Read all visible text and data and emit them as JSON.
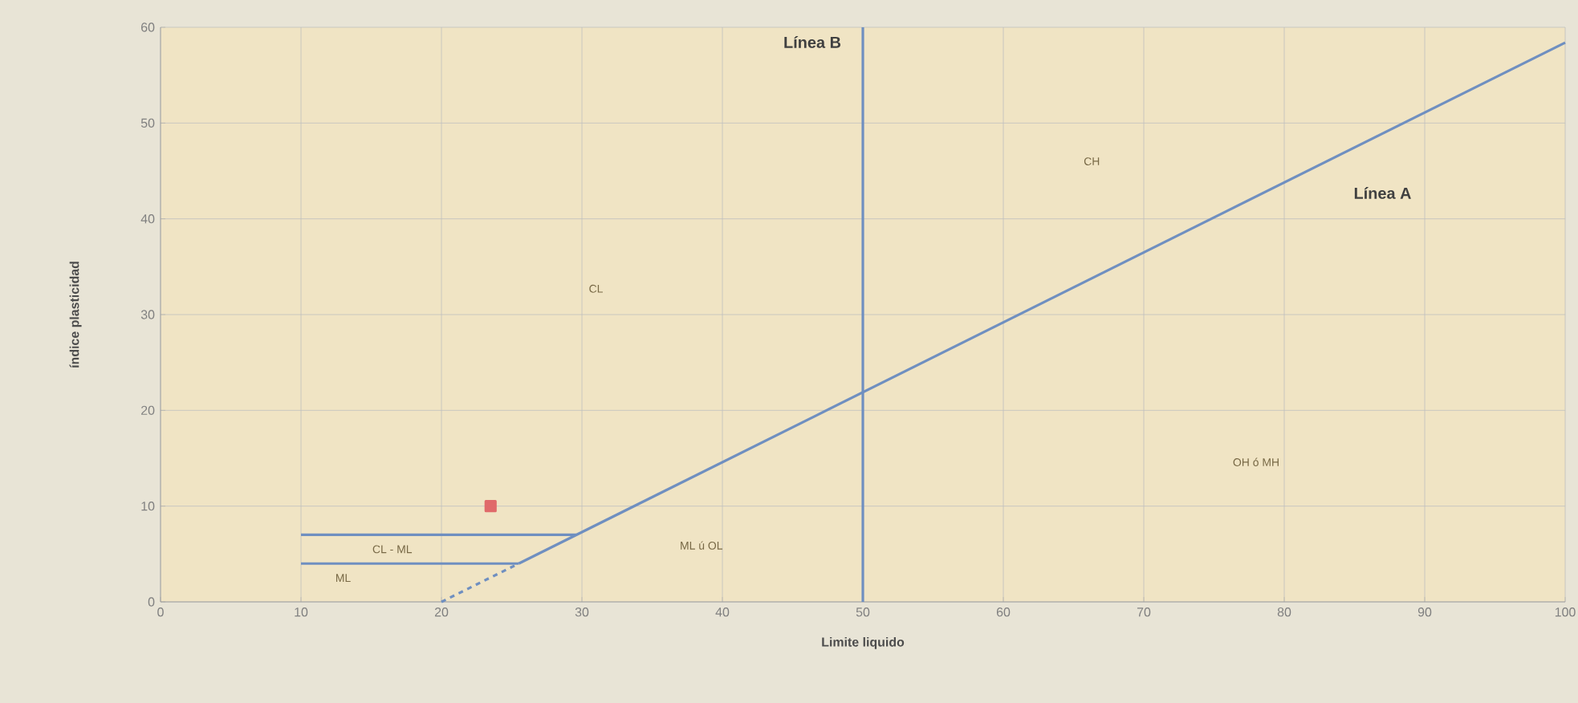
{
  "chart_data": {
    "type": "line",
    "xlabel": "Limite liquido",
    "ylabel": "índice plasticidad",
    "xlim": [
      0,
      100
    ],
    "ylim": [
      0,
      60
    ],
    "xticks": [
      0,
      10,
      20,
      30,
      40,
      50,
      60,
      70,
      80,
      90,
      100
    ],
    "yticks": [
      0,
      10,
      20,
      30,
      40,
      50,
      60
    ],
    "grid": true,
    "series": [
      {
        "x": [
          25.5,
          100
        ],
        "values": [
          4,
          58.4
        ],
        "color": "#6f8fc0",
        "line_style": "solid",
        "marker": "none"
      },
      {
        "x": [
          20,
          25.5
        ],
        "values": [
          0,
          4
        ],
        "color": "#6f8fc0",
        "line_style": "dashed",
        "marker": "none"
      },
      {
        "x": [
          10,
          29.6
        ],
        "values": [
          7,
          7
        ],
        "color": "#6f8fc0",
        "line_style": "solid",
        "marker": "none"
      },
      {
        "x": [
          10,
          25.5
        ],
        "values": [
          4,
          4
        ],
        "color": "#6f8fc0",
        "line_style": "solid",
        "marker": "none"
      },
      {
        "type": "scatter",
        "x": [
          23.5
        ],
        "values": [
          10
        ],
        "color": "#e06a6a",
        "marker": "square"
      }
    ],
    "ref_lines": [
      {
        "axis": "x",
        "value": 50,
        "label": "Línea B",
        "color": "#6f8fc0"
      }
    ],
    "annotations": [
      "Línea A",
      "CL",
      "CH",
      "OH ó MH",
      "ML ú OL",
      "CL - ML",
      "ML"
    ]
  }
}
